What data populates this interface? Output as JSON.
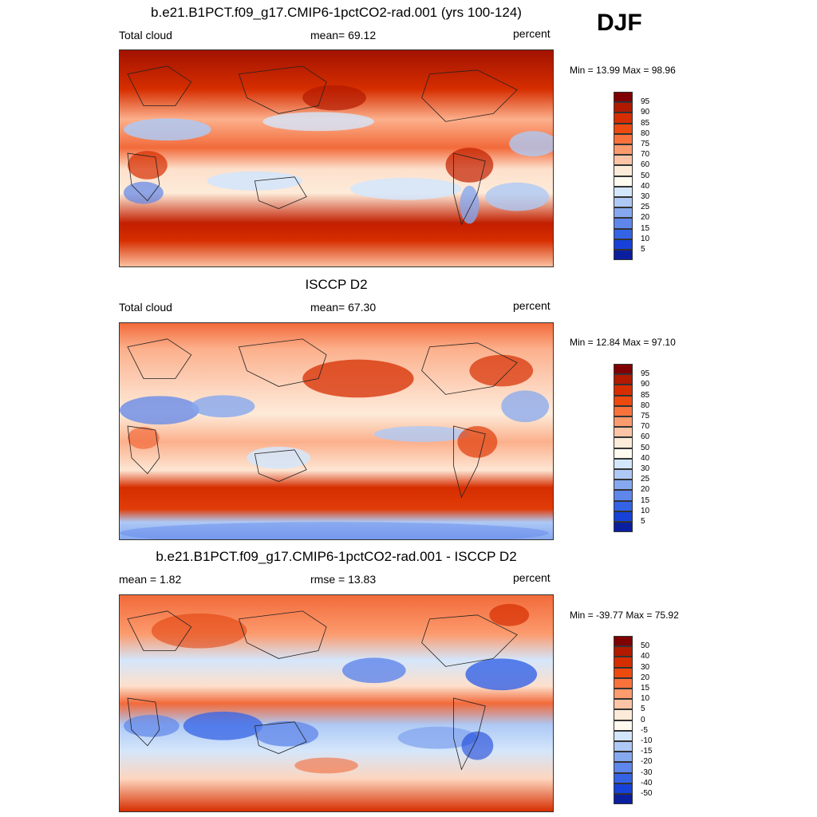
{
  "season": "DJF",
  "panels": [
    {
      "title": "b.e21.B1PCT.f09_g17.CMIP6-1pctCO2-rad.001 (yrs 100-124)",
      "left_label": "Total cloud",
      "center_label": "mean=  69.12",
      "right_label": "percent",
      "minmax": "Min =  13.99 Max =  98.96"
    },
    {
      "title": "ISCCP D2",
      "left_label": "Total cloud",
      "center_label": "mean=  67.30",
      "right_label": "percent",
      "minmax": "Min =  12.84 Max =  97.10"
    },
    {
      "title": "b.e21.B1PCT.f09_g17.CMIP6-1pctCO2-rad.001 - ISCCP D2",
      "left_label": "mean =   1.82",
      "center_label": "rmse =  13.83",
      "right_label": "percent",
      "minmax": "Min = -39.77 Max =  75.92"
    }
  ],
  "colorbars": {
    "abs": {
      "labels": [
        "95",
        "90",
        "85",
        "80",
        "75",
        "70",
        "60",
        "50",
        "40",
        "30",
        "25",
        "20",
        "15",
        "10",
        "5"
      ],
      "colors": [
        "#7f0000",
        "#b21a00",
        "#d62e00",
        "#ed4a10",
        "#f9723b",
        "#fc9b6e",
        "#fdc5a6",
        "#fdebd9",
        "#fffaf0",
        "#d4e6fb",
        "#aec9f5",
        "#86a8ef",
        "#5f86ea",
        "#3463e6",
        "#1742d9",
        "#0a1f9e"
      ]
    },
    "diff": {
      "labels": [
        "50",
        "40",
        "30",
        "20",
        "15",
        "10",
        "5",
        "0",
        "-5",
        "-10",
        "-15",
        "-20",
        "-30",
        "-40",
        "-50"
      ],
      "colors": [
        "#7f0000",
        "#b21a00",
        "#d62e00",
        "#ed4a10",
        "#f9723b",
        "#fc9b6e",
        "#fdc5a6",
        "#fdebd9",
        "#fffaf0",
        "#d4e6fb",
        "#aec9f5",
        "#86a8ef",
        "#5f86ea",
        "#3463e6",
        "#1742d9",
        "#0a1f9e"
      ]
    }
  },
  "chart_data": [
    {
      "type": "heatmap",
      "title": "b.e21.B1PCT.f09_g17.CMIP6-1pctCO2-rad.001 (yrs 100-124)",
      "variable": "Total cloud",
      "units": "percent",
      "mean": 69.12,
      "min": 13.99,
      "max": 98.96,
      "levels": [
        5,
        10,
        15,
        20,
        25,
        30,
        40,
        50,
        60,
        70,
        75,
        80,
        85,
        90,
        95
      ]
    },
    {
      "type": "heatmap",
      "title": "ISCCP D2",
      "variable": "Total cloud",
      "units": "percent",
      "mean": 67.3,
      "min": 12.84,
      "max": 97.1,
      "levels": [
        5,
        10,
        15,
        20,
        25,
        30,
        40,
        50,
        60,
        70,
        75,
        80,
        85,
        90,
        95
      ]
    },
    {
      "type": "heatmap",
      "title": "b.e21.B1PCT.f09_g17.CMIP6-1pctCO2-rad.001 - ISCCP D2",
      "units": "percent",
      "mean": 1.82,
      "rmse": 13.83,
      "min": -39.77,
      "max": 75.92,
      "levels": [
        -50,
        -40,
        -30,
        -20,
        -15,
        -10,
        -5,
        0,
        5,
        10,
        15,
        20,
        30,
        40,
        50
      ]
    }
  ]
}
